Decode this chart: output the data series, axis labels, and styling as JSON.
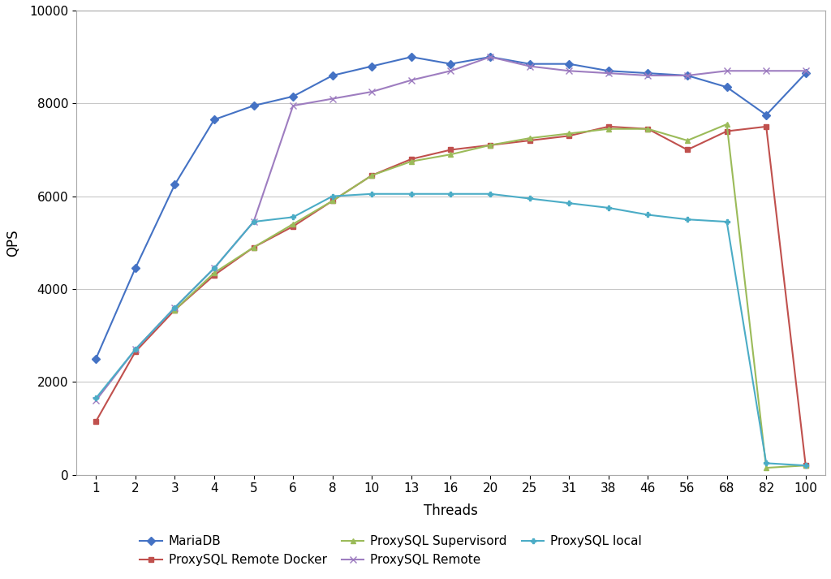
{
  "threads": [
    1,
    2,
    3,
    4,
    5,
    6,
    8,
    10,
    13,
    16,
    20,
    25,
    31,
    38,
    46,
    56,
    68,
    82,
    100
  ],
  "series": {
    "MariaDB": {
      "values": [
        2500,
        4450,
        6250,
        7650,
        7950,
        8150,
        8600,
        8800,
        9000,
        8850,
        9000,
        8850,
        8850,
        8700,
        8650,
        8600,
        8350,
        7750,
        8650
      ],
      "color": "#4472C4",
      "marker": "D",
      "markersize": 5,
      "linestyle": "-"
    },
    "ProxySQL Remote Docker": {
      "values": [
        1150,
        2650,
        3550,
        4300,
        4900,
        5350,
        5900,
        6450,
        6800,
        7000,
        7100,
        7200,
        7300,
        7500,
        7450,
        7000,
        7400,
        7500,
        200
      ],
      "color": "#C0504D",
      "marker": "s",
      "markersize": 5,
      "linestyle": "-"
    },
    "ProxySQL Supervisord": {
      "values": [
        null,
        null,
        3550,
        4350,
        4900,
        5400,
        5900,
        6450,
        6750,
        6900,
        7100,
        7250,
        7350,
        7450,
        7450,
        7200,
        7550,
        150,
        200
      ],
      "color": "#9BBB59",
      "marker": "^",
      "markersize": 5,
      "linestyle": "-"
    },
    "ProxySQL Remote": {
      "values": [
        1600,
        2700,
        3600,
        4450,
        5450,
        7950,
        8100,
        8250,
        8500,
        8700,
        9000,
        8800,
        8700,
        8650,
        8600,
        8600,
        8700,
        8700,
        8700
      ],
      "color": "#9E7DC0",
      "marker": "x",
      "markersize": 6,
      "linestyle": "-"
    },
    "ProxySQL local": {
      "values": [
        1650,
        2700,
        3600,
        4450,
        5450,
        5550,
        6000,
        6050,
        6050,
        6050,
        6050,
        5950,
        5850,
        5750,
        5600,
        5500,
        5450,
        250,
        200
      ],
      "color": "#4BACC6",
      "marker": "P",
      "markersize": 5,
      "linestyle": "-"
    }
  },
  "xlabel": "Threads",
  "ylabel": "QPS",
  "ylim": [
    0,
    10000
  ],
  "yticks": [
    0,
    2000,
    4000,
    6000,
    8000,
    10000
  ],
  "background_color": "#ffffff",
  "grid_color": "#c8c8c8",
  "legend_order": [
    "MariaDB",
    "ProxySQL Remote Docker",
    "ProxySQL Supervisord",
    "ProxySQL Remote",
    "ProxySQL local"
  ]
}
